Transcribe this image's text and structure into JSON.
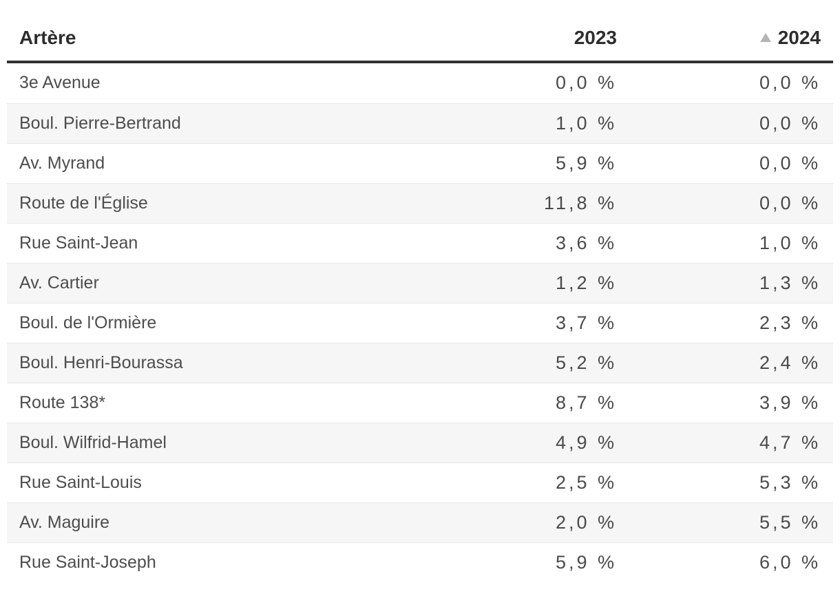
{
  "table": {
    "columns": [
      {
        "label": "Artère",
        "align": "left",
        "sorted": false
      },
      {
        "label": "2023",
        "align": "right",
        "sorted": false
      },
      {
        "label": "2024",
        "align": "right",
        "sorted": true,
        "sort_direction": "ascending"
      }
    ],
    "rows": [
      {
        "artere": "3e Avenue",
        "y2023": "0,0 %",
        "y2024": "0,0 %"
      },
      {
        "artere": "Boul. Pierre-Bertrand",
        "y2023": "1,0 %",
        "y2024": "0,0 %"
      },
      {
        "artere": "Av. Myrand",
        "y2023": "5,9 %",
        "y2024": "0,0 %"
      },
      {
        "artere": "Route de l'Église",
        "y2023": "11,8 %",
        "y2024": "0,0 %"
      },
      {
        "artere": "Rue Saint-Jean",
        "y2023": "3,6 %",
        "y2024": "1,0 %"
      },
      {
        "artere": "Av. Cartier",
        "y2023": "1,2 %",
        "y2024": "1,3 %"
      },
      {
        "artere": "Boul. de l'Ormière",
        "y2023": "3,7 %",
        "y2024": "2,3 %"
      },
      {
        "artere": "Boul. Henri-Bourassa",
        "y2023": "5,2 %",
        "y2024": "2,4 %"
      },
      {
        "artere": "Route 138*",
        "y2023": "8,7 %",
        "y2024": "3,9 %"
      },
      {
        "artere": "Boul. Wilfrid-Hamel",
        "y2023": "4,9 %",
        "y2024": "4,7 %"
      },
      {
        "artere": "Rue Saint-Louis",
        "y2023": "2,5 %",
        "y2024": "5,3 %"
      },
      {
        "artere": "Av. Maguire",
        "y2023": "2,0 %",
        "y2024": "5,5 %"
      },
      {
        "artere": "Rue Saint-Joseph",
        "y2023": "5,9 %",
        "y2024": "6,0 %"
      }
    ]
  },
  "colors": {
    "header_text": "#2e2e2e",
    "header_rule": "#333333",
    "body_text": "#4d4d4d",
    "stripe_background": "#f6f6f6",
    "row_divider": "#e8e8e8",
    "sort_icon": "#b5b5b5"
  },
  "chart_data": {
    "type": "table",
    "title": "",
    "categories": [
      "3e Avenue",
      "Boul. Pierre-Bertrand",
      "Av. Myrand",
      "Route de l'Église",
      "Rue Saint-Jean",
      "Av. Cartier",
      "Boul. de l'Ormière",
      "Boul. Henri-Bourassa",
      "Route 138*",
      "Boul. Wilfrid-Hamel",
      "Rue Saint-Louis",
      "Av. Maguire",
      "Rue Saint-Joseph"
    ],
    "series": [
      {
        "name": "2023",
        "values": [
          0.0,
          1.0,
          5.9,
          11.8,
          3.6,
          1.2,
          3.7,
          5.2,
          8.7,
          4.9,
          2.5,
          2.0,
          5.9
        ]
      },
      {
        "name": "2024",
        "values": [
          0.0,
          0.0,
          0.0,
          0.0,
          1.0,
          1.3,
          2.3,
          2.4,
          3.9,
          4.7,
          5.3,
          5.5,
          6.0
        ]
      }
    ],
    "value_format": "percent_fr_one_decimal",
    "sort": {
      "column": "2024",
      "direction": "ascending"
    },
    "layout_hints": {
      "striped_rows": true,
      "first_column_label": "Artère"
    }
  }
}
